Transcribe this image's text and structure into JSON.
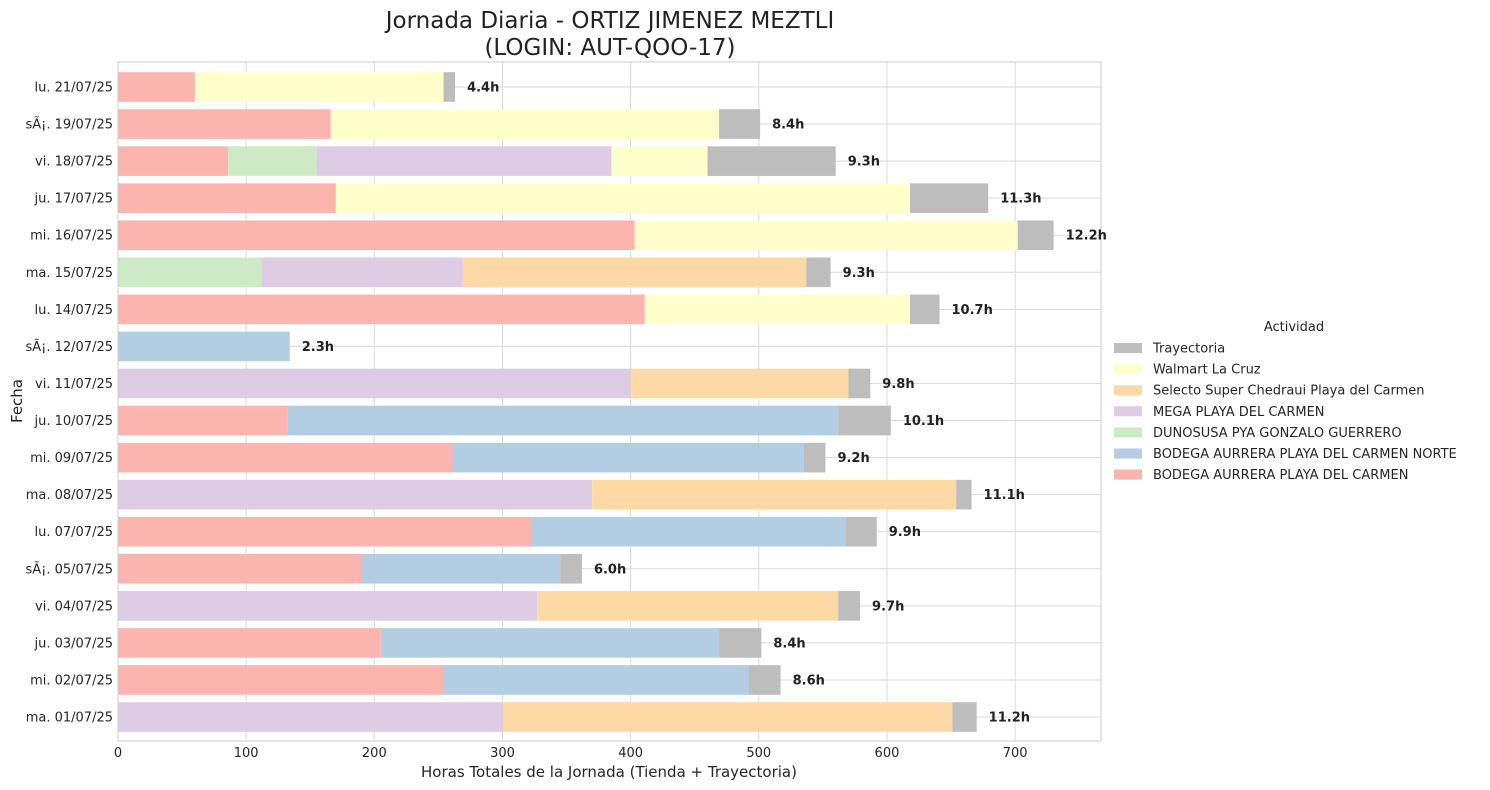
{
  "chart_data": {
    "type": "bar",
    "orientation": "horizontal",
    "stacked": true,
    "title_lines": [
      "Jornada Diaria - ORTIZ JIMENEZ MEZTLI",
      "(LOGIN: AUT-QOO-17)"
    ],
    "xlabel": "Horas Totales de la Jornada (Tienda + Trayectoria)",
    "ylabel": "Fecha",
    "xlim": [
      0,
      767
    ],
    "xticks": [
      0,
      100,
      200,
      300,
      400,
      500,
      600,
      700
    ],
    "grid": true,
    "legend": {
      "title": "Actividad",
      "placement": "center-right-outside",
      "order": [
        "Trayectoria",
        "Walmart La Cruz",
        "Selecto Super Chedraui Playa del Carmen",
        "MEGA PLAYA DEL CARMEN",
        "DUNOSUSA PYA GONZALO GUERRERO",
        "BODEGA AURRERA PLAYA DEL CARMEN NORTE",
        "BODEGA AURRERA PLAYA DEL CARMEN"
      ]
    },
    "categories": [
      "lu. 21/07/25",
      "sÃ¡. 19/07/25",
      "vi. 18/07/25",
      "ju. 17/07/25",
      "mi. 16/07/25",
      "ma. 15/07/25",
      "lu. 14/07/25",
      "sÃ¡. 12/07/25",
      "vi. 11/07/25",
      "ju. 10/07/25",
      "mi. 09/07/25",
      "ma. 08/07/25",
      "lu. 07/07/25",
      "sÃ¡. 05/07/25",
      "vi. 04/07/25",
      "ju. 03/07/25",
      "mi. 02/07/25",
      "ma. 01/07/25"
    ],
    "series": [
      {
        "name": "BODEGA AURRERA PLAYA DEL CARMEN",
        "color": "#fbb4ae",
        "values": [
          60,
          166,
          86,
          170,
          403,
          0,
          411,
          0,
          0,
          132,
          261,
          0,
          323,
          190,
          0,
          205,
          254,
          0
        ]
      },
      {
        "name": "BODEGA AURRERA PLAYA DEL CARMEN NORTE",
        "color": "#b3cde3",
        "values": [
          0,
          0,
          0,
          0,
          0,
          0,
          0,
          134,
          0,
          430,
          274,
          0,
          245,
          155,
          0,
          264,
          238,
          0
        ]
      },
      {
        "name": "DUNOSUSA PYA GONZALO GUERRERO",
        "color": "#ccebc5",
        "values": [
          0,
          0,
          69,
          0,
          0,
          112,
          0,
          0,
          0,
          0,
          0,
          0,
          0,
          0,
          0,
          0,
          0,
          0
        ]
      },
      {
        "name": "MEGA PLAYA DEL CARMEN",
        "color": "#decbe4",
        "values": [
          0,
          0,
          230,
          0,
          0,
          157,
          0,
          0,
          400,
          0,
          0,
          370,
          0,
          0,
          327,
          0,
          0,
          301
        ]
      },
      {
        "name": "Selecto Super Chedraui Playa del Carmen",
        "color": "#fed9a6",
        "values": [
          0,
          0,
          0,
          0,
          0,
          268,
          0,
          0,
          170,
          0,
          0,
          284,
          0,
          0,
          235,
          0,
          0,
          350
        ]
      },
      {
        "name": "Walmart La Cruz",
        "color": "#ffffcc",
        "values": [
          194,
          303,
          75,
          448,
          299,
          0,
          207,
          0,
          0,
          0,
          0,
          0,
          0,
          0,
          0,
          0,
          0,
          0
        ]
      },
      {
        "name": "Trayectoria",
        "color": "#bdbdbd",
        "values": [
          9,
          32,
          100,
          61,
          28,
          19,
          23,
          0,
          17,
          41,
          17,
          12,
          24,
          17,
          17,
          33,
          25,
          19
        ]
      }
    ],
    "bar_labels": [
      "4.4h",
      "8.4h",
      "9.3h",
      "11.3h",
      "12.2h",
      "9.3h",
      "10.7h",
      "2.3h",
      "9.8h",
      "10.1h",
      "9.2h",
      "11.1h",
      "9.9h",
      "6.0h",
      "9.7h",
      "8.4h",
      "8.6h",
      "11.2h"
    ]
  }
}
